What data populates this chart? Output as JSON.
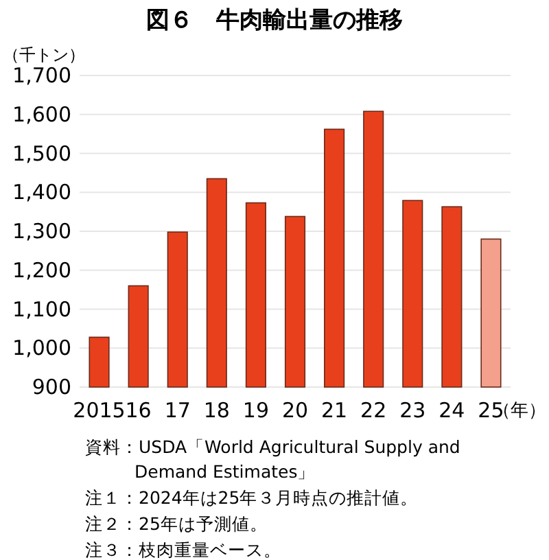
{
  "chart_data": {
    "type": "bar",
    "title": "図６　牛肉輸出量の推移",
    "ylabel": "（千トン）",
    "xlabel": "（年）",
    "categories": [
      "2015",
      "16",
      "17",
      "18",
      "19",
      "20",
      "21",
      "22",
      "23",
      "24",
      "25"
    ],
    "values": [
      1028,
      1160,
      1298,
      1435,
      1373,
      1338,
      1562,
      1608,
      1379,
      1363,
      1280
    ],
    "colors": [
      "#e8401c",
      "#e8401c",
      "#e8401c",
      "#e8401c",
      "#e8401c",
      "#e8401c",
      "#e8401c",
      "#e8401c",
      "#e8401c",
      "#e8401c",
      "#f3a08c"
    ],
    "ylim": [
      900,
      1700
    ],
    "yticks": [
      {
        "value": 900,
        "label": "900"
      },
      {
        "value": 1000,
        "label": "1,000"
      },
      {
        "value": 1100,
        "label": "1,100"
      },
      {
        "value": 1200,
        "label": "1,200"
      },
      {
        "value": 1300,
        "label": "1,300"
      },
      {
        "value": 1400,
        "label": "1,400"
      },
      {
        "value": 1500,
        "label": "1,500"
      },
      {
        "value": 1600,
        "label": "1,600"
      },
      {
        "value": 1700,
        "label": "1,700"
      }
    ],
    "grid": "y",
    "annotations": [
      "資料：USDA「World Agricultural Supply and Demand Estimates」",
      "注１：2024年は25年３月時点の推計値。",
      "注２：25年は予測値。",
      "注３：枝肉重量ベース。"
    ]
  }
}
